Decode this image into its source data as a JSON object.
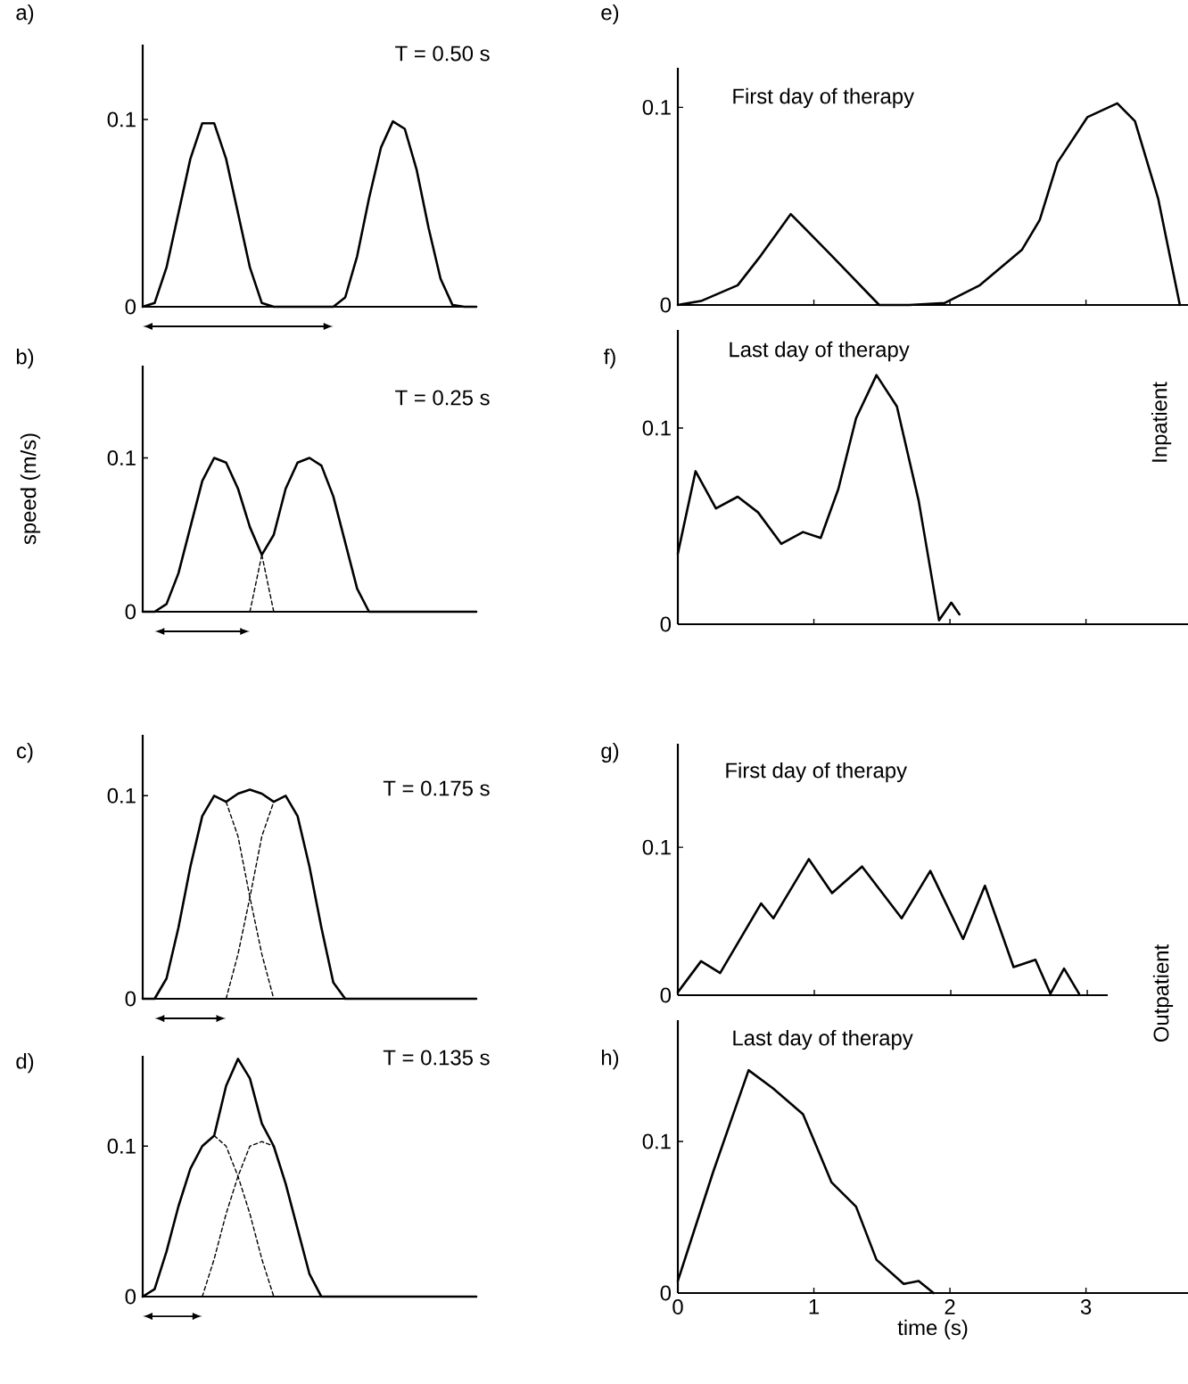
{
  "chart_data": [
    {
      "type": "line",
      "title": "a)",
      "annotations": [
        "T = 0.50 s"
      ],
      "ylabel": null,
      "categories": [
        null,
        null,
        null,
        null,
        null,
        null,
        null,
        null,
        null,
        null,
        null,
        null,
        null,
        null,
        null,
        null,
        null,
        null,
        null,
        null,
        null,
        null,
        null,
        null,
        null,
        null,
        null,
        null,
        null
      ],
      "series": [
        {
          "color": "#000000",
          "values": [
            0,
            0.002,
            0.021,
            0.05,
            0.079,
            0.098,
            0.098,
            0.079,
            0.05,
            0.021,
            0.002,
            0,
            0,
            0,
            0,
            0,
            0,
            0.005,
            0.027,
            0.058,
            0.085,
            0.099,
            0.095,
            0.073,
            0.042,
            0.015,
            0.001,
            0,
            0
          ]
        }
      ],
      "ylim": [
        0,
        0.14
      ],
      "yticks": [
        0,
        0.1
      ],
      "tick_labels": "y"
    },
    {
      "type": "line",
      "title": "b)",
      "annotations": [
        "T = 0.25 s"
      ],
      "ylabel": "speed (m/s)",
      "categories": [
        null,
        null,
        null,
        null,
        null,
        null,
        null,
        null,
        null,
        null,
        null,
        null,
        null,
        null,
        null,
        null,
        null,
        null,
        null,
        null,
        null,
        null,
        null,
        null,
        null,
        null,
        null,
        null,
        null
      ],
      "series": [
        {
          "color": "#000000",
          "values": [
            0,
            0,
            0.005,
            0.025,
            0.055,
            0.085,
            0.1,
            0.097,
            0.08,
            0.055,
            0.037,
            0.05,
            0.08,
            0.097,
            0.1,
            0.095,
            0.075,
            0.045,
            0.015,
            0,
            0,
            0,
            0,
            0,
            0,
            0,
            0,
            0,
            0
          ]
        },
        {
          "color": "#000000",
          "line_style": "dashed",
          "values": [
            null,
            null,
            null,
            null,
            null,
            null,
            null,
            null,
            null,
            null,
            0.037,
            0,
            null,
            null,
            null,
            null,
            null,
            null,
            null,
            null,
            null,
            null,
            null,
            null,
            null,
            null,
            null,
            null,
            null
          ]
        },
        {
          "color": "#000000",
          "line_style": "dashed",
          "values": [
            null,
            null,
            null,
            null,
            null,
            null,
            null,
            null,
            null,
            0,
            0.037,
            null,
            null,
            null,
            null,
            null,
            null,
            null,
            null,
            null,
            null,
            null,
            null,
            null,
            null,
            null,
            null,
            null,
            null
          ]
        }
      ],
      "ylim": [
        0,
        0.16
      ],
      "yticks": [
        0,
        0.1
      ],
      "tick_labels": "y"
    },
    {
      "type": "line",
      "title": "c)",
      "annotations": [
        "T = 0.175 s"
      ],
      "categories": [
        null,
        null,
        null,
        null,
        null,
        null,
        null,
        null,
        null,
        null,
        null,
        null,
        null,
        null,
        null,
        null,
        null,
        null,
        null,
        null,
        null,
        null,
        null,
        null,
        null,
        null,
        null,
        null,
        null
      ],
      "series": [
        {
          "color": "#000000",
          "values": [
            0,
            0,
            0.01,
            0.035,
            0.065,
            0.09,
            0.1,
            0.097,
            0.101,
            0.103,
            0.101,
            0.097,
            0.1,
            0.09,
            0.065,
            0.035,
            0.008,
            0,
            0,
            0,
            0,
            0,
            0,
            0,
            0,
            0,
            0,
            0,
            0
          ]
        },
        {
          "color": "#000000",
          "line_style": "dashed",
          "values": [
            null,
            null,
            null,
            null,
            null,
            null,
            null,
            0.097,
            0.08,
            0.05,
            0.022,
            0,
            null,
            null,
            null,
            null,
            null,
            null,
            null,
            null,
            null,
            null,
            null,
            null,
            null,
            null,
            null,
            null,
            null
          ]
        },
        {
          "color": "#000000",
          "line_style": "dashed",
          "values": [
            null,
            null,
            null,
            null,
            null,
            null,
            null,
            0,
            0.022,
            0.05,
            0.08,
            0.097,
            null,
            null,
            null,
            null,
            null,
            null,
            null,
            null,
            null,
            null,
            null,
            null,
            null,
            null,
            null,
            null,
            null
          ]
        }
      ],
      "ylim": [
        0,
        0.13
      ],
      "yticks": [
        0,
        0.1
      ],
      "tick_labels": "y"
    },
    {
      "type": "line",
      "title": "d)",
      "annotations": [
        "T = 0.135 s"
      ],
      "categories": [
        null,
        null,
        null,
        null,
        null,
        null,
        null,
        null,
        null,
        null,
        null,
        null,
        null,
        null,
        null,
        null,
        null,
        null,
        null,
        null,
        null,
        null,
        null,
        null,
        null,
        null,
        null,
        null,
        null
      ],
      "series": [
        {
          "color": "#000000",
          "values": [
            0,
            0.005,
            0.03,
            0.06,
            0.085,
            0.1,
            0.107,
            0.14,
            0.158,
            0.145,
            0.115,
            0.1,
            0.075,
            0.045,
            0.015,
            0,
            0,
            0,
            0,
            0,
            0,
            0,
            0,
            0,
            0,
            0,
            0,
            0,
            0
          ]
        },
        {
          "color": "#000000",
          "line_style": "dashed",
          "values": [
            null,
            null,
            null,
            null,
            null,
            null,
            0.107,
            0.1,
            0.08,
            0.055,
            0.025,
            0,
            null,
            null,
            null,
            null,
            null,
            null,
            null,
            null,
            null,
            null,
            null,
            null,
            null,
            null,
            null,
            null,
            null
          ]
        },
        {
          "color": "#000000",
          "line_style": "dashed",
          "values": [
            null,
            null,
            null,
            null,
            null,
            0,
            0.025,
            0.055,
            0.08,
            0.1,
            0.103,
            0.1,
            null,
            null,
            null,
            null,
            null,
            null,
            null,
            null,
            null,
            null,
            null,
            null,
            null,
            null,
            null,
            null,
            null
          ]
        }
      ],
      "ylim": [
        0,
        0.16
      ],
      "yticks": [
        0,
        0.1
      ],
      "tick_labels": "y"
    },
    {
      "type": "line",
      "title": "e)",
      "annotations": [
        "First day of therapy"
      ],
      "x": [
        0,
        0.17,
        0.44,
        0.61,
        0.83,
        1.13,
        1.48,
        1.7,
        1.96,
        2.22,
        2.53,
        2.66,
        2.79,
        3.01,
        3.23,
        3.36,
        3.53,
        3.69
      ],
      "series": [
        {
          "color": "#000000",
          "values": [
            0,
            0.002,
            0.01,
            0.025,
            0.046,
            0.025,
            0,
            0,
            0.001,
            0.01,
            0.028,
            0.043,
            0.072,
            0.095,
            0.102,
            0.093,
            0.054,
            0
          ]
        }
      ],
      "xlim": [
        0,
        3.75
      ],
      "xticks": [
        0,
        1,
        2,
        3
      ],
      "ylim": [
        0,
        0.12
      ],
      "yticks": [
        0,
        0.1
      ],
      "tick_labels": "y"
    },
    {
      "type": "line",
      "title": "f)",
      "annotations": [
        "Last day of therapy",
        "Inpatient"
      ],
      "x": [
        0,
        0.13,
        0.28,
        0.44,
        0.59,
        0.76,
        0.92,
        1.05,
        1.18,
        1.31,
        1.46,
        1.61,
        1.77,
        1.92,
        2.01,
        2.07
      ],
      "series": [
        {
          "color": "#000000",
          "values": [
            0.036,
            0.078,
            0.059,
            0.065,
            0.057,
            0.041,
            0.047,
            0.044,
            0.069,
            0.105,
            0.127,
            0.111,
            0.063,
            0.002,
            0.011,
            0.005
          ]
        }
      ],
      "xlim": [
        0,
        3.75
      ],
      "xticks": [
        0,
        1,
        2,
        3
      ],
      "ylim": [
        0,
        0.15
      ],
      "yticks": [
        0,
        0.1
      ],
      "tick_labels": "y"
    },
    {
      "type": "line",
      "title": "g)",
      "annotations": [
        "First day of therapy",
        "Outpatient"
      ],
      "x": [
        0,
        0.17,
        0.31,
        0.61,
        0.7,
        0.96,
        1.13,
        1.35,
        1.64,
        1.85,
        2.09,
        2.25,
        2.46,
        2.62,
        2.73,
        2.83,
        2.94
      ],
      "series": [
        {
          "color": "#000000",
          "values": [
            0.002,
            0.023,
            0.015,
            0.062,
            0.052,
            0.092,
            0.069,
            0.087,
            0.052,
            0.084,
            0.038,
            0.074,
            0.019,
            0.024,
            0.001,
            0.018,
            0.001
          ]
        }
      ],
      "xlim": [
        0,
        3.15
      ],
      "xticks": [
        0,
        1,
        2,
        3
      ],
      "ylim": [
        0,
        0.17
      ],
      "yticks": [
        0,
        0.1
      ],
      "tick_labels": "y"
    },
    {
      "type": "line",
      "title": "h)",
      "annotations": [
        "Last day of therapy"
      ],
      "xlabel": "time (s)",
      "x": [
        0,
        0.26,
        0.52,
        0.7,
        0.92,
        1.13,
        1.31,
        1.46,
        1.66,
        1.77,
        1.88
      ],
      "series": [
        {
          "color": "#000000",
          "values": [
            0.008,
            0.08,
            0.147,
            0.135,
            0.118,
            0.073,
            0.057,
            0.022,
            0.006,
            0.008,
            0
          ]
        }
      ],
      "xlim": [
        0,
        3.75
      ],
      "xticks": [
        0,
        1,
        2,
        3
      ],
      "ylim": [
        0,
        0.18
      ],
      "yticks": [
        0,
        0.1
      ]
    }
  ]
}
